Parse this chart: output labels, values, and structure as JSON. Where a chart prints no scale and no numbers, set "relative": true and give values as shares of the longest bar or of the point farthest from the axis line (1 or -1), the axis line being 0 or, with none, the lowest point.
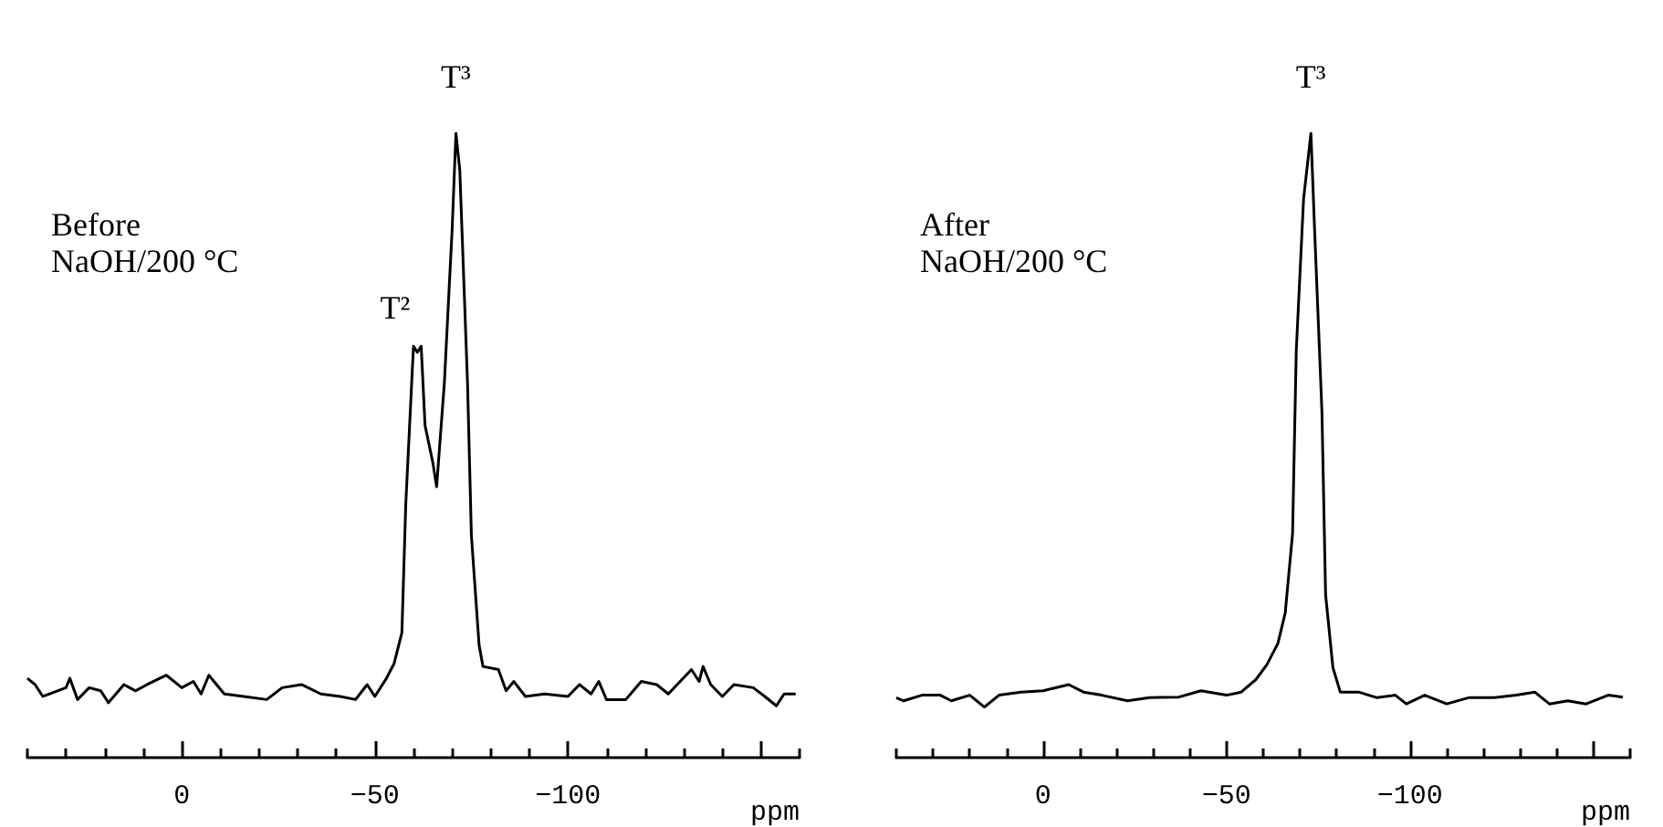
{
  "chart_data": [
    {
      "type": "line",
      "relative": true,
      "color": "#000000",
      "marker": "none",
      "line_style": "solid",
      "grid": false,
      "tick_labels": "x",
      "xlabel": "ppm",
      "xlim": [
        40,
        -160
      ],
      "xticks": [
        {
          "value": 40,
          "label": null
        },
        {
          "value": 30,
          "label": null
        },
        {
          "value": 20,
          "label": null
        },
        {
          "value": 10,
          "label": null
        },
        0,
        {
          "value": -10,
          "label": null
        },
        {
          "value": -20,
          "label": null
        },
        {
          "value": -30,
          "label": null
        },
        {
          "value": -40,
          "label": null
        },
        -50,
        {
          "value": -60,
          "label": null
        },
        {
          "value": -70,
          "label": null
        },
        {
          "value": -80,
          "label": null
        },
        {
          "value": -90,
          "label": null
        },
        -100,
        {
          "value": -110,
          "label": null
        },
        {
          "value": -120,
          "label": null
        },
        {
          "value": -130,
          "label": null
        },
        {
          "value": -140,
          "label": null
        },
        {
          "value": -150,
          "label": null
        },
        {
          "value": -160,
          "label": null
        }
      ],
      "annotations": [
        "Before\nNaOH/200 °C",
        {
          "text": "T²",
          "x": -60,
          "y": 0.659
        },
        {
          "text": "T³",
          "x": -71,
          "y": 1
        }
      ],
      "x": [
        40,
        38,
        36,
        30,
        29,
        27,
        24,
        21,
        19,
        15,
        12,
        9,
        4,
        0,
        -3,
        -5,
        -7,
        -11,
        -16,
        -22,
        -26,
        -31,
        -36,
        -41,
        -45,
        -48,
        -50,
        -53,
        -55,
        -57,
        -58,
        -60,
        -61,
        -62,
        -63,
        -65,
        -66,
        -68,
        -70,
        -71,
        -72,
        -74,
        -75,
        -77,
        -78,
        -82,
        -84,
        -86,
        -89,
        -94,
        -100,
        -103,
        -106,
        -108,
        -110,
        -115,
        -119,
        -123,
        -126,
        -132,
        -134,
        -135,
        -137,
        -140,
        -143,
        -148,
        -151,
        -154,
        -156,
        -159
      ],
      "values": [
        0.127,
        0.117,
        0.098,
        0.112,
        0.127,
        0.093,
        0.112,
        0.107,
        0.088,
        0.117,
        0.107,
        0.117,
        0.132,
        0.112,
        0.122,
        0.102,
        0.132,
        0.102,
        0.098,
        0.093,
        0.112,
        0.117,
        0.102,
        0.098,
        0.093,
        0.117,
        0.098,
        0.127,
        0.151,
        0.2,
        0.405,
        0.659,
        0.649,
        0.659,
        0.532,
        0.473,
        0.434,
        0.6,
        0.844,
        1,
        0.941,
        0.6,
        0.356,
        0.18,
        0.146,
        0.141,
        0.107,
        0.122,
        0.098,
        0.102,
        0.098,
        0.117,
        0.102,
        0.122,
        0.093,
        0.093,
        0.122,
        0.117,
        0.102,
        0.141,
        0.122,
        0.146,
        0.117,
        0.098,
        0.117,
        0.112,
        0.098,
        0.083,
        0.102,
        0.102
      ]
    },
    {
      "type": "line",
      "relative": true,
      "color": "#000000",
      "marker": "none",
      "line_style": "solid",
      "grid": false,
      "tick_labels": "x",
      "xlabel": "ppm",
      "xlim": [
        40,
        -160
      ],
      "xticks": [
        {
          "value": 40,
          "label": null
        },
        {
          "value": 30,
          "label": null
        },
        {
          "value": 20,
          "label": null
        },
        {
          "value": 10,
          "label": null
        },
        0,
        {
          "value": -10,
          "label": null
        },
        {
          "value": -20,
          "label": null
        },
        {
          "value": -30,
          "label": null
        },
        {
          "value": -40,
          "label": null
        },
        -50,
        {
          "value": -60,
          "label": null
        },
        {
          "value": -70,
          "label": null
        },
        {
          "value": -80,
          "label": null
        },
        {
          "value": -90,
          "label": null
        },
        -100,
        {
          "value": -110,
          "label": null
        },
        {
          "value": -120,
          "label": null
        },
        {
          "value": -130,
          "label": null
        },
        {
          "value": -140,
          "label": null
        },
        {
          "value": -150,
          "label": null
        },
        {
          "value": -160,
          "label": null
        }
      ],
      "annotations": [
        "After\nNaOH/200 °C",
        {
          "text": "T³",
          "x": -73,
          "y": 1
        }
      ],
      "x": [
        40,
        38,
        33,
        28,
        25,
        20,
        16,
        12,
        6,
        0,
        -7,
        -11,
        -16,
        -23,
        -29,
        -37,
        -43,
        -50,
        -54,
        -58,
        -61,
        -64,
        -66,
        -68,
        -69,
        -71,
        -73,
        -74,
        -76,
        -77,
        -79,
        -81,
        -86,
        -91,
        -96,
        -99,
        -104,
        -110,
        -116,
        -123,
        -129,
        -134,
        -138,
        -143,
        -148,
        -154,
        -158
      ],
      "values": [
        0.096,
        0.091,
        0.1,
        0.1,
        0.091,
        0.1,
        0.081,
        0.1,
        0.105,
        0.107,
        0.117,
        0.105,
        0.1,
        0.091,
        0.096,
        0.097,
        0.107,
        0.1,
        0.105,
        0.125,
        0.149,
        0.183,
        0.232,
        0.359,
        0.651,
        0.895,
        1,
        0.846,
        0.554,
        0.261,
        0.144,
        0.105,
        0.105,
        0.096,
        0.1,
        0.086,
        0.1,
        0.086,
        0.096,
        0.096,
        0.1,
        0.105,
        0.086,
        0.091,
        0.086,
        0.1,
        0.097
      ]
    }
  ]
}
